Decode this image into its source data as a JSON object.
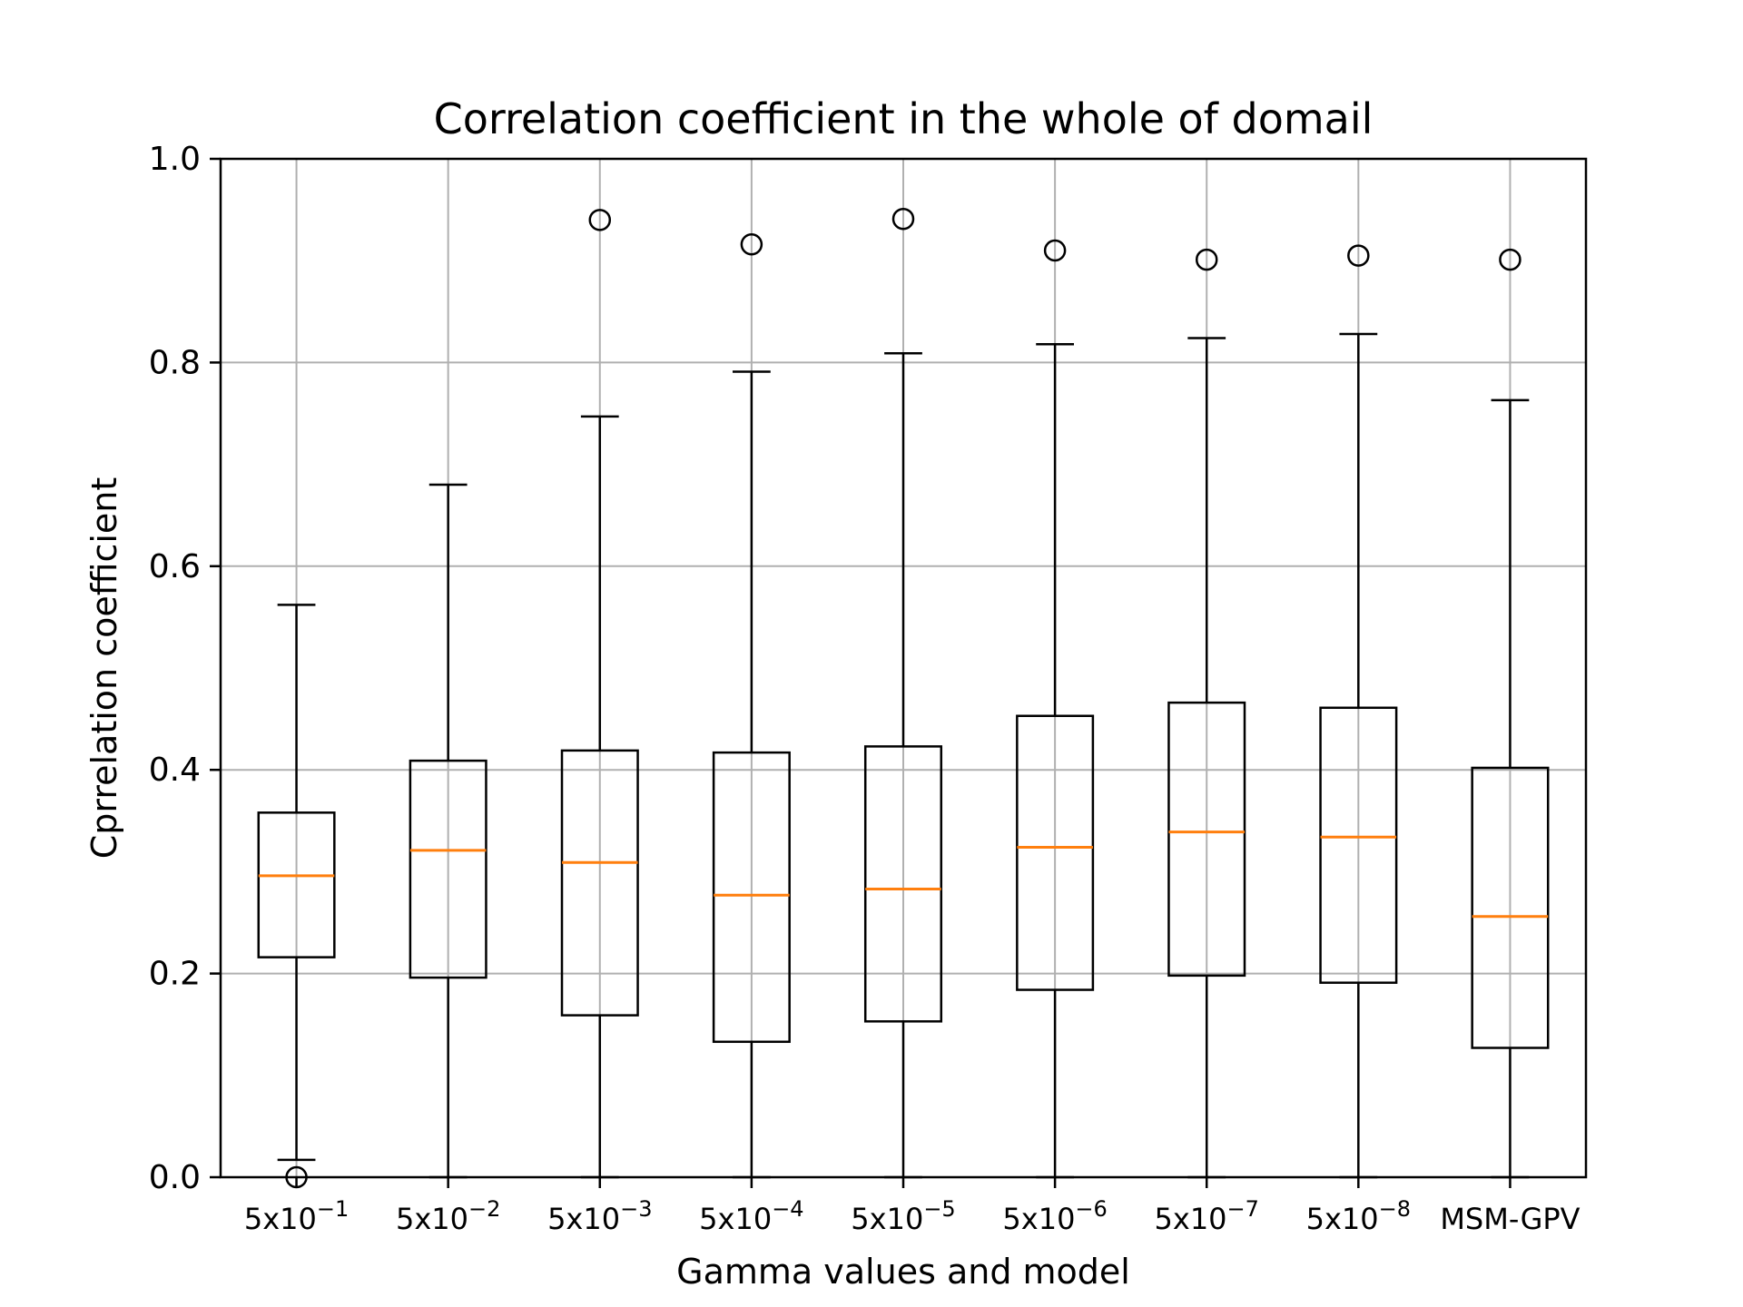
{
  "chart_data": {
    "type": "box",
    "title": "Correlation coefficient in the whole of domail",
    "xlabel": "Gamma values and model",
    "ylabel": "Cprrelation coefficient",
    "ylim": [
      0.0,
      1.0
    ],
    "yticks": [
      "0.0",
      "0.2",
      "0.4",
      "0.6",
      "0.8",
      "1.0"
    ],
    "grid": true,
    "categories": [
      {
        "base": "5x10",
        "exp": "−1"
      },
      {
        "base": "5x10",
        "exp": "−2"
      },
      {
        "base": "5x10",
        "exp": "−3"
      },
      {
        "base": "5x10",
        "exp": "−4"
      },
      {
        "base": "5x10",
        "exp": "−5"
      },
      {
        "base": "5x10",
        "exp": "−6"
      },
      {
        "base": "5x10",
        "exp": "−7"
      },
      {
        "base": "5x10",
        "exp": "−8"
      },
      {
        "base": "MSM-GPV",
        "exp": ""
      }
    ],
    "boxes": [
      {
        "whisker_low": 0.017,
        "q1": 0.216,
        "median": 0.296,
        "q3": 0.358,
        "whisker_high": 0.562,
        "outliers": [
          0.0
        ]
      },
      {
        "whisker_low": 0.0,
        "q1": 0.196,
        "median": 0.321,
        "q3": 0.409,
        "whisker_high": 0.68,
        "outliers": []
      },
      {
        "whisker_low": 0.0,
        "q1": 0.159,
        "median": 0.309,
        "q3": 0.419,
        "whisker_high": 0.747,
        "outliers": [
          0.94
        ]
      },
      {
        "whisker_low": 0.0,
        "q1": 0.133,
        "median": 0.277,
        "q3": 0.417,
        "whisker_high": 0.791,
        "outliers": [
          0.916
        ]
      },
      {
        "whisker_low": 0.0,
        "q1": 0.153,
        "median": 0.283,
        "q3": 0.423,
        "whisker_high": 0.809,
        "outliers": [
          0.941
        ]
      },
      {
        "whisker_low": 0.0,
        "q1": 0.184,
        "median": 0.324,
        "q3": 0.453,
        "whisker_high": 0.818,
        "outliers": [
          0.91
        ]
      },
      {
        "whisker_low": 0.0,
        "q1": 0.198,
        "median": 0.339,
        "q3": 0.466,
        "whisker_high": 0.824,
        "outliers": [
          0.901
        ]
      },
      {
        "whisker_low": 0.0,
        "q1": 0.191,
        "median": 0.334,
        "q3": 0.461,
        "whisker_high": 0.828,
        "outliers": [
          0.905
        ]
      },
      {
        "whisker_low": 0.0,
        "q1": 0.127,
        "median": 0.256,
        "q3": 0.402,
        "whisker_high": 0.763,
        "outliers": [
          0.901
        ]
      }
    ],
    "colors": {
      "box": "#000000",
      "median": "#ff7f0e",
      "grid": "#b0b0b0"
    }
  }
}
